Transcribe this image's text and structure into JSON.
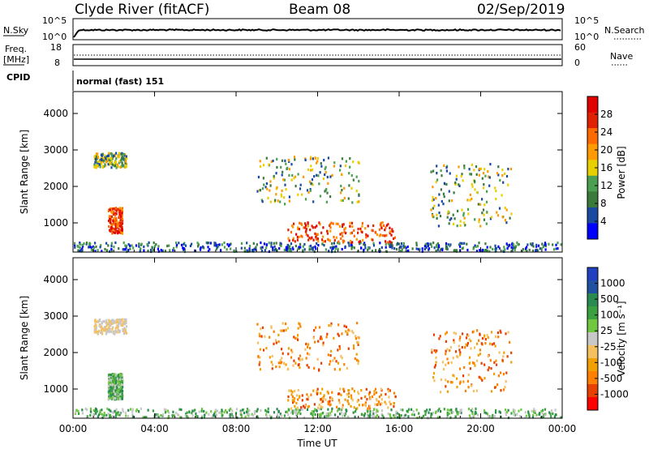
{
  "header": {
    "radar": "Clyde River (fitACF)",
    "beam": "Beam 08",
    "date": "02/Sep/2019"
  },
  "top_panels": {
    "nsky_label": "N.Sky",
    "nsky_ticks": [
      "10^5",
      "10^0"
    ],
    "nsearch_label": "N.Search",
    "nsearch_ticks": [
      "10^5",
      "10^0"
    ],
    "freq_label_1": "Freq.",
    "freq_label_2": "[MHz]",
    "freq_ticks": [
      "18",
      "8"
    ],
    "nave_label": "Nave",
    "nave_ticks": [
      "60",
      "0"
    ],
    "cpid_label": "CPID",
    "cpid_text": "normal (fast) 151"
  },
  "colors": {
    "power_scale": [
      "#0000ff",
      "#1a4aa0",
      "#3a7a3a",
      "#4aa050",
      "#e8d000",
      "#ff9a00",
      "#ff6a00",
      "#e02000",
      "#e00000"
    ],
    "velocity_scale": [
      "#ff0000",
      "#e84000",
      "#ff8000",
      "#f0a000",
      "#f5c060",
      "#c8c8c8",
      "#70c840",
      "#3aa040",
      "#2a8a50",
      "#2050a0",
      "#2040c0"
    ]
  },
  "chart_data": [
    {
      "type": "heatmap",
      "panel": "power",
      "ylabel": "Slant Range [km]",
      "yticks": [
        "1000",
        "2000",
        "3000",
        "4000"
      ],
      "ylim": [
        200,
        4600
      ],
      "xticks": [
        "00:00",
        "04:00",
        "08:00",
        "12:00",
        "16:00",
        "20:00",
        "00:00"
      ],
      "xlim_hours": [
        0,
        24
      ],
      "colorbar_label": "Power [dB]",
      "colorbar_ticks": [
        "4",
        "8",
        "12",
        "16",
        "20",
        "24",
        "28"
      ],
      "regions": [
        {
          "t": [
            0.0,
            24.0
          ],
          "r": [
            200,
            450
          ],
          "level": "low"
        },
        {
          "t": [
            1.0,
            2.6
          ],
          "r": [
            2500,
            2900
          ],
          "level": "mid"
        },
        {
          "t": [
            1.7,
            2.4
          ],
          "r": [
            700,
            1400
          ],
          "level": "high"
        },
        {
          "t": [
            10.5,
            15.8
          ],
          "r": [
            450,
            1000
          ],
          "level": "high"
        },
        {
          "t": [
            9.0,
            14.0
          ],
          "r": [
            1500,
            2800
          ],
          "level": "mid"
        },
        {
          "t": [
            17.5,
            21.5
          ],
          "r": [
            900,
            2600
          ],
          "level": "mid"
        }
      ]
    },
    {
      "type": "heatmap",
      "panel": "velocity",
      "ylabel": "Slant Range [km]",
      "yticks": [
        "1000",
        "2000",
        "3000",
        "4000"
      ],
      "ylim": [
        200,
        4600
      ],
      "xticks": [
        "00:00",
        "04:00",
        "08:00",
        "12:00",
        "16:00",
        "20:00",
        "00:00"
      ],
      "xlim_hours": [
        0,
        24
      ],
      "xlabel": "Time UT",
      "colorbar_label": "Velocity [m s⁻¹]",
      "colorbar_ticks": [
        "1000",
        "500",
        "100",
        "25",
        "-25",
        "-100",
        "-500",
        "-1000"
      ],
      "regions": [
        {
          "t": [
            0.0,
            24.0
          ],
          "r": [
            200,
            450
          ],
          "level": "green"
        },
        {
          "t": [
            1.0,
            2.6
          ],
          "r": [
            2500,
            2900
          ],
          "level": "gray"
        },
        {
          "t": [
            1.7,
            2.4
          ],
          "r": [
            700,
            1400
          ],
          "level": "green"
        },
        {
          "t": [
            10.5,
            15.8
          ],
          "r": [
            450,
            1000
          ],
          "level": "orange"
        },
        {
          "t": [
            9.0,
            14.0
          ],
          "r": [
            1500,
            2800
          ],
          "level": "orange"
        },
        {
          "t": [
            17.5,
            21.5
          ],
          "r": [
            900,
            2600
          ],
          "level": "orange"
        }
      ]
    }
  ]
}
